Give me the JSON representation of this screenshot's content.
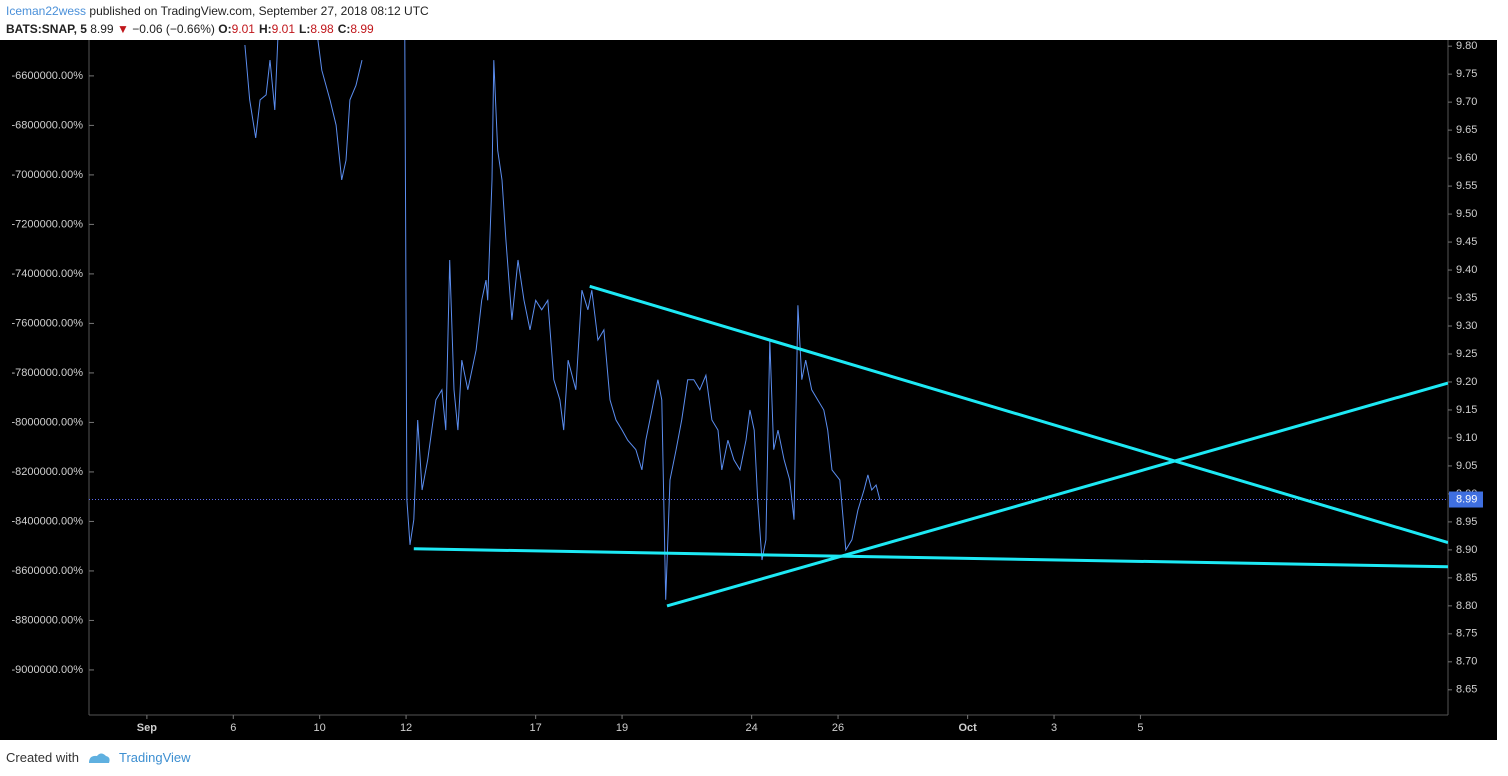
{
  "header": {
    "author": "Iceman22wess",
    "published": "published on TradingView.com, September 27, 2018 08:12 UTC",
    "symbol": "BATS:SNAP, 5",
    "price": "8.99",
    "change": "−0.06 (−0.66%)",
    "ohlc": [
      {
        "label": "O:",
        "value": "9.01"
      },
      {
        "label": "H:",
        "value": "9.01"
      },
      {
        "label": "L:",
        "value": "8.98"
      },
      {
        "label": "C:",
        "value": "8.99"
      }
    ]
  },
  "chart_data": {
    "type": "line",
    "xlim": [
      -1.34,
      30.12
    ],
    "xticks": [
      {
        "value": 0,
        "label": "Sep"
      },
      {
        "value": 2,
        "label": "6"
      },
      {
        "value": 4,
        "label": "10"
      },
      {
        "value": 6,
        "label": "12"
      },
      {
        "value": 9,
        "label": "17"
      },
      {
        "value": 11,
        "label": "19"
      },
      {
        "value": 14,
        "label": "24"
      },
      {
        "value": 16,
        "label": "26"
      },
      {
        "value": 19,
        "label": "Oct"
      },
      {
        "value": 21,
        "label": "3"
      },
      {
        "value": 23,
        "label": "5"
      }
    ],
    "ylim": [
      -9182000,
      -6455000
    ],
    "yticks": [
      {
        "value": -6600000,
        "label": "-6600000.00%"
      },
      {
        "value": -6800000,
        "label": "-6800000.00%"
      },
      {
        "value": -7000000,
        "label": "-7000000.00%"
      },
      {
        "value": -7200000,
        "label": "-7200000.00%"
      },
      {
        "value": -7400000,
        "label": "-7400000.00%"
      },
      {
        "value": -7600000,
        "label": "-7600000.00%"
      },
      {
        "value": -7800000,
        "label": "-7800000.00%"
      },
      {
        "value": -8000000,
        "label": "-8000000.00%"
      },
      {
        "value": -8200000,
        "label": "-8200000.00%"
      },
      {
        "value": -8400000,
        "label": "-8400000.00%"
      },
      {
        "value": -8600000,
        "label": "-8600000.00%"
      },
      {
        "value": -8800000,
        "label": "-8800000.00%"
      },
      {
        "value": -9000000,
        "label": "-9000000.00%"
      }
    ],
    "y2lim": [
      8.605,
      9.811
    ],
    "y2ticks": [
      8.65,
      {
        "value": 8.7,
        "label": "8.70"
      },
      8.75,
      {
        "value": 8.8,
        "label": "8.80"
      },
      8.85,
      {
        "value": 8.9,
        "label": "8.90"
      },
      8.95,
      {
        "value": 9.0,
        "label": "9.00"
      },
      9.05,
      {
        "value": 9.1,
        "label": "9.10"
      },
      9.15,
      {
        "value": 9.2,
        "label": "9.20"
      },
      9.25,
      {
        "value": 9.3,
        "label": "9.30"
      },
      9.35,
      {
        "value": 9.4,
        "label": "9.40"
      },
      9.45,
      {
        "value": 9.5,
        "label": "9.50"
      },
      9.55,
      {
        "value": 9.6,
        "label": "9.60"
      },
      9.65,
      {
        "value": 9.7,
        "label": "9.70"
      },
      9.75,
      {
        "value": 9.8,
        "label": "9.80"
      }
    ],
    "grid": false,
    "last_price": 8.99,
    "series": [
      {
        "axis": "y2",
        "color": "#5b8def",
        "x": [
          2.27,
          2.38,
          2.52,
          2.62,
          2.76,
          2.85,
          2.96,
          3.03,
          null,
          3.96,
          4.05,
          4.24,
          4.38,
          4.51,
          4.61,
          4.7,
          4.84,
          4.98,
          null,
          5.97,
          6.02,
          6.09,
          6.18,
          6.27,
          6.37,
          6.5,
          6.69,
          6.83,
          6.92,
          7.01,
          7.11,
          7.2,
          7.29,
          7.43,
          7.62,
          7.75,
          7.85,
          7.89,
          7.99,
          8.03,
          8.12,
          8.22,
          8.31,
          8.45,
          8.59,
          8.73,
          8.87,
          9.0,
          9.14,
          9.28,
          9.42,
          9.56,
          9.65,
          9.75,
          9.93,
          10.07,
          10.21,
          10.3,
          10.44,
          10.58,
          10.72,
          10.86,
          11.0,
          11.13,
          11.32,
          11.46,
          11.55,
          11.69,
          11.83,
          11.92,
          12.01,
          12.11,
          12.25,
          12.38,
          12.52,
          12.66,
          12.8,
          12.94,
          13.08,
          13.22,
          13.31,
          13.45,
          13.59,
          13.73,
          13.87,
          13.96,
          14.06,
          14.14,
          14.24,
          14.33,
          14.42,
          14.51,
          14.61,
          14.75,
          14.88,
          14.98,
          15.07,
          15.16,
          15.25,
          15.39,
          15.53,
          15.67,
          15.76,
          15.86,
          16.04,
          16.18,
          16.32,
          16.46,
          16.6,
          16.69,
          16.78,
          16.88,
          16.97
        ],
        "values": [
          9.802,
          9.704,
          9.636,
          9.704,
          9.713,
          9.775,
          9.686,
          9.811,
          null,
          9.811,
          9.757,
          9.704,
          9.659,
          9.561,
          9.596,
          9.704,
          9.73,
          9.775,
          null,
          9.811,
          8.989,
          8.909,
          8.954,
          9.132,
          9.007,
          9.061,
          9.168,
          9.186,
          9.114,
          9.418,
          9.186,
          9.114,
          9.239,
          9.186,
          9.257,
          9.346,
          9.382,
          9.346,
          9.561,
          9.775,
          9.614,
          9.561,
          9.454,
          9.311,
          9.418,
          9.346,
          9.293,
          9.346,
          9.329,
          9.346,
          9.204,
          9.168,
          9.114,
          9.239,
          9.186,
          9.364,
          9.329,
          9.364,
          9.275,
          9.293,
          9.168,
          9.132,
          9.114,
          9.096,
          9.079,
          9.043,
          9.096,
          9.15,
          9.204,
          9.168,
          8.811,
          9.025,
          9.079,
          9.132,
          9.204,
          9.204,
          9.186,
          9.212,
          9.132,
          9.114,
          9.043,
          9.096,
          9.061,
          9.043,
          9.096,
          9.15,
          9.114,
          8.989,
          8.882,
          8.918,
          9.275,
          9.079,
          9.114,
          9.061,
          9.025,
          8.954,
          9.337,
          9.204,
          9.239,
          9.186,
          9.168,
          9.15,
          9.114,
          9.043,
          9.025,
          8.9,
          8.918,
          8.971,
          9.007,
          9.034,
          9.007,
          9.016,
          8.989
        ]
      }
    ],
    "drawings": [
      {
        "color": "#1de9f5",
        "x": [
          6.18,
          30.12
        ],
        "values": [
          8.902,
          8.87
        ]
      },
      {
        "color": "#1de9f5",
        "x": [
          10.25,
          30.12
        ],
        "values": [
          9.371,
          8.913
        ]
      },
      {
        "color": "#1de9f5",
        "x": [
          12.04,
          30.12
        ],
        "values": [
          8.8,
          9.198
        ]
      }
    ]
  },
  "footer": {
    "created": "Created with",
    "brand": "TradingView"
  }
}
